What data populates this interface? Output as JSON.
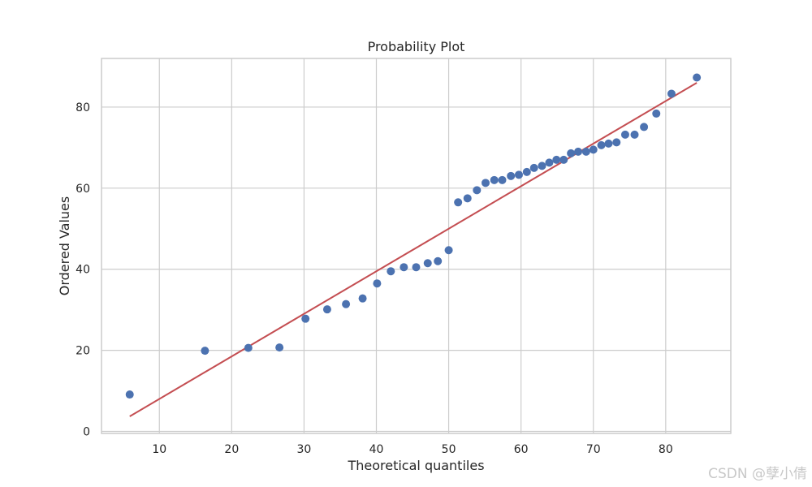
{
  "chart_data": {
    "type": "scatter",
    "title": "Probability Plot",
    "xlabel": "Theoretical quantiles",
    "ylabel": "Ordered Values",
    "xlim": [
      2,
      89
    ],
    "ylim": [
      -0.5,
      92
    ],
    "xticks": [
      10,
      20,
      30,
      40,
      50,
      60,
      70,
      80
    ],
    "yticks": [
      0,
      20,
      40,
      60,
      80
    ],
    "grid": true,
    "points": [
      [
        5.9,
        9.1
      ],
      [
        16.3,
        19.9
      ],
      [
        22.3,
        20.6
      ],
      [
        26.6,
        20.7
      ],
      [
        30.2,
        27.8
      ],
      [
        33.2,
        30.1
      ],
      [
        35.8,
        31.4
      ],
      [
        38.1,
        32.8
      ],
      [
        40.1,
        36.5
      ],
      [
        42.0,
        39.5
      ],
      [
        43.8,
        40.5
      ],
      [
        45.5,
        40.5
      ],
      [
        47.1,
        41.5
      ],
      [
        48.5,
        42.0
      ],
      [
        50.0,
        44.7
      ],
      [
        51.3,
        56.5
      ],
      [
        52.6,
        57.5
      ],
      [
        53.9,
        59.5
      ],
      [
        55.1,
        61.3
      ],
      [
        56.3,
        62.0
      ],
      [
        57.4,
        62.0
      ],
      [
        58.6,
        63.0
      ],
      [
        59.7,
        63.3
      ],
      [
        60.8,
        64.0
      ],
      [
        61.8,
        65.0
      ],
      [
        62.9,
        65.5
      ],
      [
        63.9,
        66.3
      ],
      [
        64.9,
        67.0
      ],
      [
        65.9,
        67.0
      ],
      [
        66.9,
        68.6
      ],
      [
        67.9,
        69.0
      ],
      [
        69.0,
        69.0
      ],
      [
        70.0,
        69.5
      ],
      [
        71.1,
        70.6
      ],
      [
        72.1,
        71.0
      ],
      [
        73.2,
        71.3
      ],
      [
        74.4,
        73.2
      ],
      [
        75.7,
        73.2
      ],
      [
        77.0,
        75.1
      ],
      [
        78.7,
        78.4
      ],
      [
        80.8,
        83.3
      ],
      [
        84.3,
        87.3
      ]
    ],
    "fit_line": {
      "x": [
        5.9,
        84.3
      ],
      "y": [
        3.7,
        86.0
      ]
    },
    "colors": {
      "points": "#4c72b0",
      "line": "#c44e52",
      "grid": "#cccccc",
      "frame": "#cccccc"
    }
  },
  "watermark": "CSDN @孽小倩"
}
